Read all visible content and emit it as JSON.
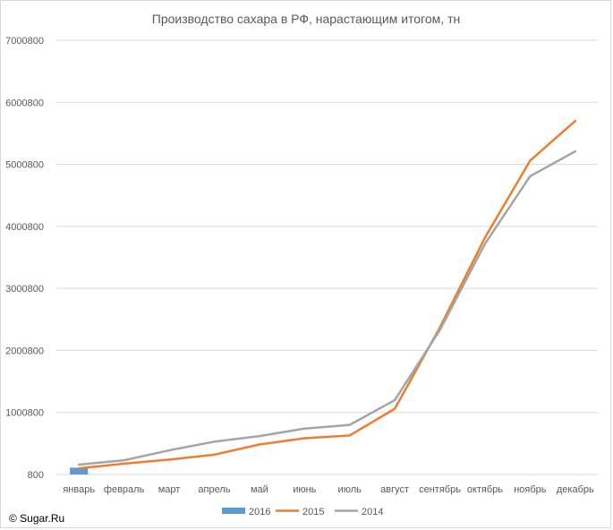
{
  "chart_data": {
    "type": "line",
    "title": "Производство сахара в РФ, нарастающим итогом, тн",
    "xlabel": "",
    "ylabel": "",
    "categories": [
      "январь",
      "февраль",
      "март",
      "апрель",
      "май",
      "июнь",
      "июль",
      "август",
      "сентябрь",
      "октябрь",
      "ноябрь",
      "декабрь"
    ],
    "y_ticks": [
      "800",
      "1000800",
      "2000800",
      "3000800",
      "4000800",
      "5000800",
      "6000800",
      "7000800"
    ],
    "ylim": [
      800,
      7000800
    ],
    "grid": true,
    "legend_position": "bottom",
    "series": [
      {
        "name": "2016",
        "kind": "bar",
        "color": "#5b9bd5",
        "values": [
          110000,
          null,
          null,
          null,
          null,
          null,
          null,
          null,
          null,
          null,
          null,
          null
        ]
      },
      {
        "name": "2015",
        "kind": "line",
        "color": "#ed7d31",
        "values": [
          100000,
          175000,
          240000,
          320000,
          485000,
          585000,
          630000,
          1060000,
          2370000,
          3820000,
          5060000,
          5700000
        ]
      },
      {
        "name": "2014",
        "kind": "line",
        "color": "#a5a5a5",
        "values": [
          160000,
          230000,
          390000,
          530000,
          620000,
          740000,
          800000,
          1200000,
          2330000,
          3720000,
          4810000,
          5210000
        ]
      }
    ]
  },
  "watermark": "© Sugar.Ru"
}
